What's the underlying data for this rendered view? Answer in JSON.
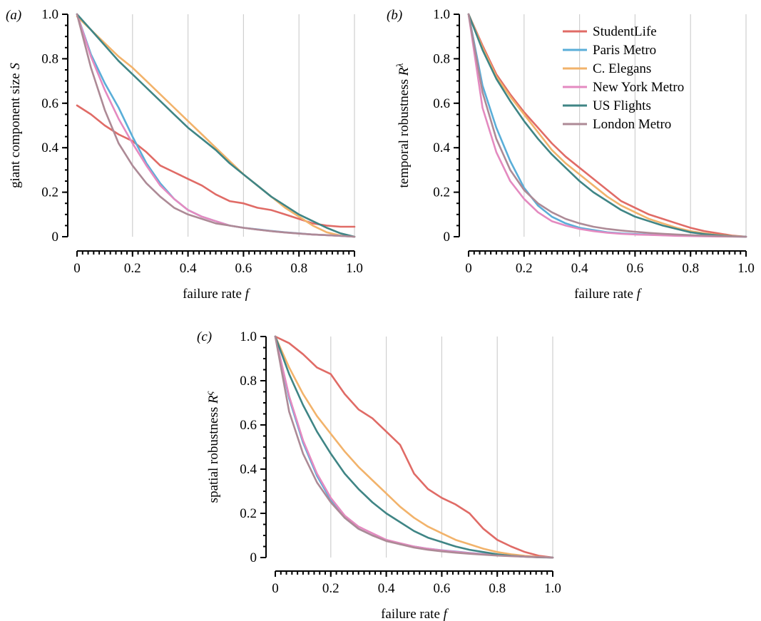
{
  "colors": {
    "StudentLife": "#e06b66",
    "Paris Metro": "#5aaed8",
    "C. Elegans": "#f2b36b",
    "New York Metro": "#e48ac0",
    "US Flights": "#3f8585",
    "London Metro": "#ad8a96"
  },
  "legend": {
    "placement": "top-right of panel (b)",
    "entries": [
      "StudentLife",
      "Paris Metro",
      "C. Elegans",
      "New York Metro",
      "US Flights",
      "London Metro"
    ]
  },
  "chart_data": [
    {
      "panel": "(a)",
      "type": "line",
      "xlabel": "failure rate f",
      "ylabel": "giant component size S",
      "xlim": [
        0,
        1
      ],
      "ylim": [
        0,
        1
      ],
      "xticks": [
        "0",
        "0.2",
        "0.4",
        "0.6",
        "0.8",
        "1.0"
      ],
      "yticks": [
        "0",
        "0.2",
        "0.4",
        "0.6",
        "0.8",
        "1.0"
      ],
      "grid": "vertical",
      "x": [
        0,
        0.05,
        0.1,
        0.15,
        0.2,
        0.25,
        0.3,
        0.35,
        0.4,
        0.45,
        0.5,
        0.55,
        0.6,
        0.65,
        0.7,
        0.75,
        0.8,
        0.85,
        0.9,
        0.95,
        1.0
      ],
      "series": [
        {
          "name": "StudentLife",
          "values": [
            0.59,
            0.55,
            0.5,
            0.46,
            0.43,
            0.38,
            0.32,
            0.29,
            0.26,
            0.23,
            0.19,
            0.16,
            0.15,
            0.13,
            0.12,
            0.1,
            0.08,
            0.06,
            0.05,
            0.045,
            0.045
          ]
        },
        {
          "name": "Paris Metro",
          "values": [
            1.0,
            0.82,
            0.69,
            0.58,
            0.45,
            0.33,
            0.24,
            0.17,
            0.12,
            0.09,
            0.07,
            0.05,
            0.04,
            0.033,
            0.026,
            0.02,
            0.015,
            0.01,
            0.007,
            0.004,
            0.0
          ]
        },
        {
          "name": "C. Elegans",
          "values": [
            0.99,
            0.93,
            0.87,
            0.81,
            0.76,
            0.7,
            0.64,
            0.58,
            0.52,
            0.46,
            0.4,
            0.34,
            0.28,
            0.23,
            0.18,
            0.13,
            0.09,
            0.05,
            0.02,
            0.005,
            0.0
          ]
        },
        {
          "name": "New York Metro",
          "values": [
            1.0,
            0.81,
            0.66,
            0.53,
            0.42,
            0.32,
            0.23,
            0.17,
            0.12,
            0.09,
            0.07,
            0.05,
            0.04,
            0.032,
            0.025,
            0.019,
            0.014,
            0.01,
            0.007,
            0.004,
            0.0
          ]
        },
        {
          "name": "US Flights",
          "values": [
            1.0,
            0.93,
            0.86,
            0.79,
            0.73,
            0.67,
            0.61,
            0.55,
            0.49,
            0.44,
            0.39,
            0.33,
            0.28,
            0.23,
            0.18,
            0.14,
            0.1,
            0.07,
            0.04,
            0.015,
            0.0
          ]
        },
        {
          "name": "London Metro",
          "values": [
            1.0,
            0.76,
            0.57,
            0.42,
            0.32,
            0.24,
            0.18,
            0.13,
            0.1,
            0.08,
            0.06,
            0.05,
            0.04,
            0.032,
            0.025,
            0.019,
            0.014,
            0.01,
            0.007,
            0.004,
            0.0
          ]
        }
      ]
    },
    {
      "panel": "(b)",
      "type": "line",
      "xlabel": "failure rate f",
      "ylabel": "temporal robustness R^λ",
      "xlim": [
        0,
        1
      ],
      "ylim": [
        0,
        1
      ],
      "xticks": [
        "0",
        "0.2",
        "0.4",
        "0.6",
        "0.8",
        "1.0"
      ],
      "yticks": [
        "0",
        "0.2",
        "0.4",
        "0.6",
        "0.8",
        "1.0"
      ],
      "grid": "vertical",
      "x": [
        0,
        0.05,
        0.1,
        0.15,
        0.2,
        0.25,
        0.3,
        0.35,
        0.4,
        0.45,
        0.5,
        0.55,
        0.6,
        0.65,
        0.7,
        0.75,
        0.8,
        0.85,
        0.9,
        0.95,
        1.0
      ],
      "series": [
        {
          "name": "StudentLife",
          "values": [
            1.0,
            0.86,
            0.73,
            0.64,
            0.56,
            0.49,
            0.42,
            0.36,
            0.31,
            0.26,
            0.21,
            0.16,
            0.13,
            0.1,
            0.08,
            0.06,
            0.04,
            0.025,
            0.015,
            0.005,
            0.0
          ]
        },
        {
          "name": "Paris Metro",
          "values": [
            1.0,
            0.68,
            0.49,
            0.34,
            0.22,
            0.14,
            0.09,
            0.06,
            0.04,
            0.03,
            0.02,
            0.015,
            0.012,
            0.009,
            0.007,
            0.005,
            0.004,
            0.003,
            0.002,
            0.001,
            0.0
          ]
        },
        {
          "name": "C. Elegans",
          "values": [
            1.0,
            0.85,
            0.72,
            0.63,
            0.55,
            0.47,
            0.39,
            0.33,
            0.28,
            0.23,
            0.18,
            0.14,
            0.11,
            0.08,
            0.06,
            0.04,
            0.025,
            0.015,
            0.008,
            0.003,
            0.0
          ]
        },
        {
          "name": "New York Metro",
          "values": [
            1.0,
            0.58,
            0.38,
            0.25,
            0.17,
            0.11,
            0.07,
            0.05,
            0.035,
            0.025,
            0.018,
            0.013,
            0.01,
            0.008,
            0.006,
            0.004,
            0.003,
            0.002,
            0.001,
            0.0005,
            0.0
          ]
        },
        {
          "name": "US Flights",
          "values": [
            1.0,
            0.84,
            0.71,
            0.61,
            0.52,
            0.44,
            0.37,
            0.31,
            0.25,
            0.2,
            0.16,
            0.12,
            0.09,
            0.07,
            0.05,
            0.035,
            0.02,
            0.012,
            0.006,
            0.002,
            0.0
          ]
        },
        {
          "name": "London Metro",
          "values": [
            1.0,
            0.65,
            0.44,
            0.3,
            0.21,
            0.15,
            0.11,
            0.08,
            0.06,
            0.045,
            0.035,
            0.028,
            0.022,
            0.017,
            0.013,
            0.01,
            0.007,
            0.005,
            0.003,
            0.001,
            0.0
          ]
        }
      ]
    },
    {
      "panel": "(c)",
      "type": "line",
      "xlabel": "failure rate f",
      "ylabel": "spatial robustness R^ς",
      "xlim": [
        0,
        1
      ],
      "ylim": [
        0,
        1
      ],
      "xticks": [
        "0",
        "0.2",
        "0.4",
        "0.6",
        "0.8",
        "1.0"
      ],
      "yticks": [
        "0",
        "0.2",
        "0.4",
        "0.6",
        "0.8",
        "1.0"
      ],
      "grid": "vertical",
      "x": [
        0,
        0.05,
        0.1,
        0.15,
        0.2,
        0.25,
        0.3,
        0.35,
        0.4,
        0.45,
        0.5,
        0.55,
        0.6,
        0.65,
        0.7,
        0.75,
        0.8,
        0.85,
        0.9,
        0.95,
        1.0
      ],
      "series": [
        {
          "name": "StudentLife",
          "values": [
            1.0,
            0.97,
            0.92,
            0.86,
            0.83,
            0.74,
            0.67,
            0.63,
            0.57,
            0.51,
            0.38,
            0.31,
            0.27,
            0.24,
            0.2,
            0.13,
            0.08,
            0.05,
            0.025,
            0.008,
            0.0
          ]
        },
        {
          "name": "Paris Metro",
          "values": [
            1.0,
            0.72,
            0.52,
            0.37,
            0.26,
            0.18,
            0.13,
            0.1,
            0.08,
            0.06,
            0.05,
            0.04,
            0.033,
            0.027,
            0.021,
            0.016,
            0.012,
            0.008,
            0.005,
            0.002,
            0.0
          ]
        },
        {
          "name": "C. Elegans",
          "values": [
            1.0,
            0.86,
            0.74,
            0.64,
            0.56,
            0.48,
            0.41,
            0.35,
            0.29,
            0.23,
            0.18,
            0.14,
            0.11,
            0.08,
            0.06,
            0.04,
            0.025,
            0.015,
            0.008,
            0.003,
            0.0
          ]
        },
        {
          "name": "New York Metro",
          "values": [
            1.0,
            0.73,
            0.53,
            0.38,
            0.27,
            0.19,
            0.14,
            0.11,
            0.08,
            0.065,
            0.05,
            0.04,
            0.032,
            0.026,
            0.02,
            0.015,
            0.011,
            0.008,
            0.005,
            0.002,
            0.0
          ]
        },
        {
          "name": "US Flights",
          "values": [
            1.0,
            0.83,
            0.69,
            0.57,
            0.47,
            0.38,
            0.31,
            0.25,
            0.2,
            0.16,
            0.12,
            0.09,
            0.07,
            0.05,
            0.035,
            0.025,
            0.015,
            0.008,
            0.004,
            0.001,
            0.0
          ]
        },
        {
          "name": "London Metro",
          "values": [
            1.0,
            0.66,
            0.47,
            0.34,
            0.25,
            0.18,
            0.13,
            0.1,
            0.075,
            0.06,
            0.045,
            0.035,
            0.028,
            0.022,
            0.017,
            0.013,
            0.009,
            0.006,
            0.004,
            0.002,
            0.0
          ]
        }
      ]
    }
  ]
}
